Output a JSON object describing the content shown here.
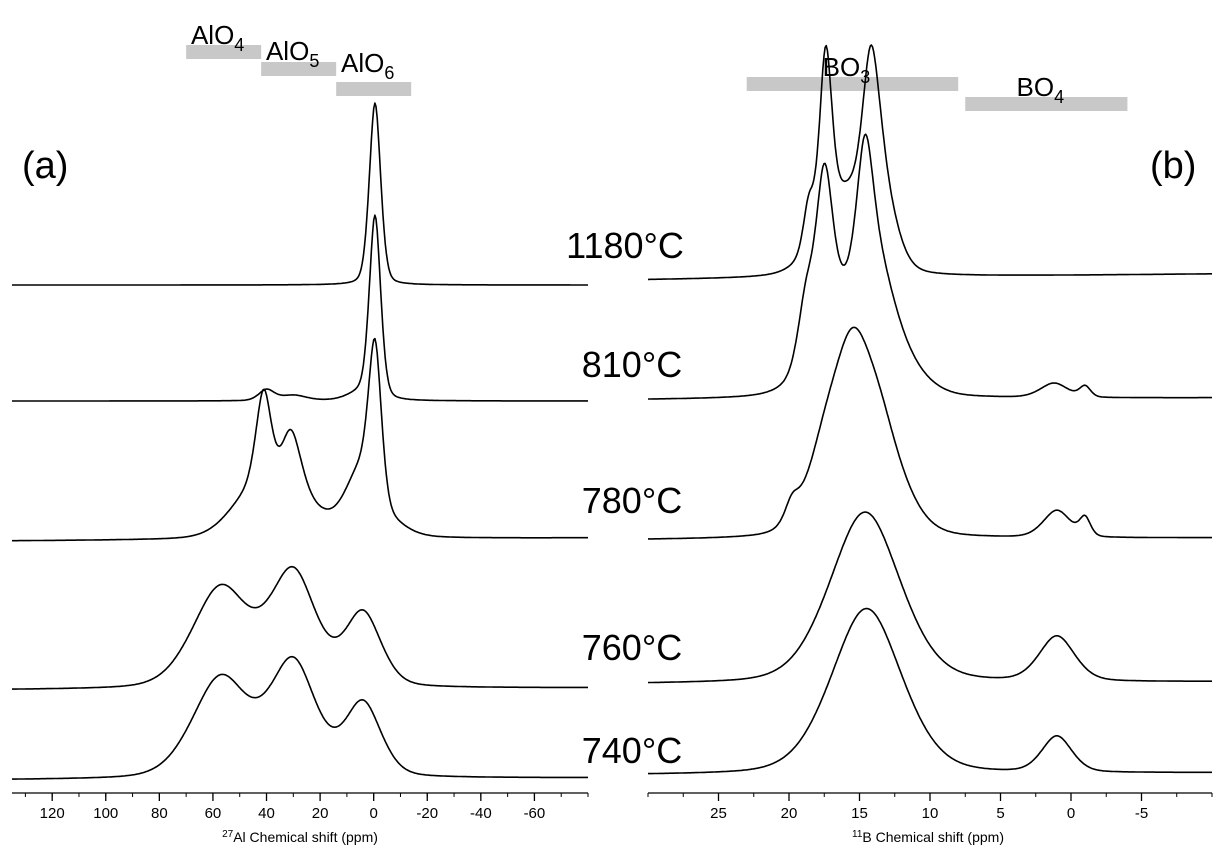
{
  "colors": {
    "line": "#000000",
    "region_bar": "#c8c8c8"
  },
  "chart_data": [
    {
      "type": "line",
      "panel_label": "(a)",
      "xlabel_sup": "27",
      "xlabel": "Al Chemical shift (ppm)",
      "xlim": [
        135,
        -80
      ],
      "xticks": [
        120,
        100,
        80,
        60,
        40,
        20,
        0,
        -20,
        -40,
        -60
      ],
      "regions": [
        {
          "base": "AlO",
          "sub": "4",
          "range": [
            70,
            42
          ]
        },
        {
          "base": "AlO",
          "sub": "5",
          "range": [
            42,
            14
          ]
        },
        {
          "base": "AlO",
          "sub": "6",
          "range": [
            14,
            -14
          ]
        }
      ],
      "series": [
        {
          "temperature": "1180°C",
          "peaks": [
            [
              -0.5,
              1.0,
              2.2
            ]
          ]
        },
        {
          "temperature": "810°C",
          "peaks": [
            [
              -0.5,
              1.0,
              2.2
            ],
            [
              40,
              0.06,
              3
            ],
            [
              30,
              0.03,
              5
            ],
            [
              5,
              0.04,
              5
            ]
          ]
        },
        {
          "temperature": "780°C",
          "peaks": [
            [
              -0.5,
              0.85,
              2.5
            ],
            [
              5,
              0.35,
              6
            ],
            [
              41,
              0.55,
              3
            ],
            [
              31,
              0.4,
              4
            ],
            [
              45,
              0.25,
              9
            ],
            [
              25,
              0.15,
              8
            ],
            [
              -8,
              0.05,
              6
            ]
          ]
        },
        {
          "temperature": "760°C",
          "peaks": [
            [
              57,
              0.55,
              11
            ],
            [
              30,
              0.62,
              9
            ],
            [
              4,
              0.4,
              7
            ]
          ]
        },
        {
          "temperature": "740°C",
          "peaks": [
            [
              57,
              0.55,
              11
            ],
            [
              30,
              0.62,
              9
            ],
            [
              4,
              0.4,
              7
            ]
          ]
        }
      ]
    },
    {
      "type": "line",
      "panel_label": "(b)",
      "xlabel_sup": "11",
      "xlabel": "B Chemical shift (ppm)",
      "xlim": [
        30,
        -10
      ],
      "xticks": [
        25,
        20,
        15,
        10,
        5,
        0,
        -5
      ],
      "regions": [
        {
          "base": "BO",
          "sub": "3",
          "range": [
            23,
            8
          ]
        },
        {
          "base": "BO",
          "sub": "4",
          "range": [
            7.5,
            -4
          ]
        }
      ],
      "series": [
        {
          "temperature": "1180°C",
          "peaks": [
            [
              17.4,
              0.95,
              0.45
            ],
            [
              14.2,
              0.75,
              0.6
            ],
            [
              16,
              0.45,
              1.8
            ],
            [
              13.4,
              0.4,
              1
            ],
            [
              18.6,
              0.25,
              0.4
            ]
          ]
        },
        {
          "temperature": "810°C",
          "peaks": [
            [
              17.5,
              0.85,
              0.6
            ],
            [
              14.6,
              0.75,
              0.6
            ],
            [
              16,
              0.55,
              2
            ],
            [
              13.5,
              0.45,
              1.2
            ],
            [
              18.8,
              0.35,
              0.6
            ],
            [
              11.5,
              0.12,
              1.5
            ],
            [
              1.2,
              0.08,
              1
            ],
            [
              -1,
              0.06,
              0.4
            ]
          ]
        },
        {
          "temperature": "780°C",
          "peaks": [
            [
              15.5,
              0.78,
              1.5
            ],
            [
              13.5,
              0.5,
              1.8
            ],
            [
              17.5,
              0.35,
              1.5
            ],
            [
              19.8,
              0.1,
              0.5
            ],
            [
              1,
              0.15,
              1
            ],
            [
              -1,
              0.1,
              0.4
            ]
          ]
        },
        {
          "temperature": "760°C",
          "peaks": [
            [
              14.6,
              0.95,
              2.6
            ],
            [
              1,
              0.25,
              1.3
            ]
          ]
        },
        {
          "temperature": "740°C",
          "peaks": [
            [
              14.5,
              0.92,
              2.6
            ],
            [
              1,
              0.2,
              1.1
            ]
          ]
        }
      ]
    }
  ]
}
